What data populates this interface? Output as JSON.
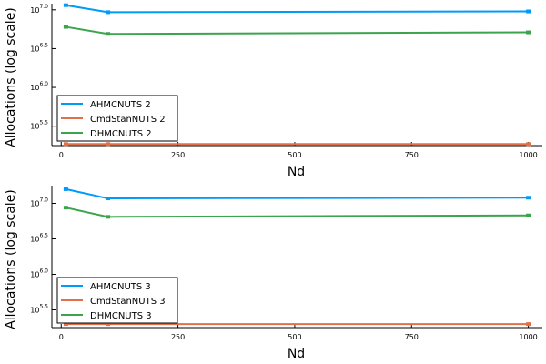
{
  "chart_data": [
    {
      "type": "line",
      "title": "",
      "xlabel": "Nd",
      "ylabel": "Allocations (log scale)",
      "x": [
        10,
        100,
        1000
      ],
      "xlim": [
        -20,
        1030
      ],
      "xticks": [
        "0",
        "250",
        "500",
        "750",
        "1000"
      ],
      "xtick_values": [
        0,
        250,
        500,
        750,
        1000
      ],
      "yscale": "log10",
      "ylim": [
        5.25,
        7.08
      ],
      "ytick_values": [
        5.5,
        6.0,
        6.5,
        7.0
      ],
      "yticks": [
        {
          "base": "10",
          "exp": "5.5"
        },
        {
          "base": "10",
          "exp": "6.0"
        },
        {
          "base": "10",
          "exp": "6.5"
        },
        {
          "base": "10",
          "exp": "7.0"
        }
      ],
      "grid": false,
      "legend_position": "bottom-left",
      "series": [
        {
          "name": "AHMCNUTS 2",
          "color": "#009AFA",
          "log10_values": [
            7.06,
            6.97,
            6.98
          ]
        },
        {
          "name": "CmdStanNUTS 2",
          "color": "#E26F46",
          "log10_values": [
            5.27,
            5.27,
            5.27
          ]
        },
        {
          "name": "DHMCNUTS 2",
          "color": "#3DA44E",
          "log10_values": [
            6.78,
            6.69,
            6.71
          ]
        }
      ]
    },
    {
      "type": "line",
      "title": "",
      "xlabel": "Nd",
      "ylabel": "Allocations (log scale)",
      "x": [
        10,
        100,
        1000
      ],
      "xlim": [
        -20,
        1030
      ],
      "xticks": [
        "0",
        "250",
        "500",
        "750",
        "1000"
      ],
      "xtick_values": [
        0,
        250,
        500,
        750,
        1000
      ],
      "yscale": "log10",
      "ylim": [
        5.25,
        7.25
      ],
      "ytick_values": [
        5.5,
        6.0,
        6.5,
        7.0
      ],
      "yticks": [
        {
          "base": "10",
          "exp": "5.5"
        },
        {
          "base": "10",
          "exp": "6.0"
        },
        {
          "base": "10",
          "exp": "6.5"
        },
        {
          "base": "10",
          "exp": "7.0"
        }
      ],
      "grid": false,
      "legend_position": "bottom-left",
      "series": [
        {
          "name": "AHMCNUTS 3",
          "color": "#009AFA",
          "log10_values": [
            7.2,
            7.07,
            7.08
          ]
        },
        {
          "name": "CmdStanNUTS 3",
          "color": "#E26F46",
          "log10_values": [
            5.3,
            5.3,
            5.3
          ]
        },
        {
          "name": "DHMCNUTS 3",
          "color": "#3DA44E",
          "log10_values": [
            6.94,
            6.81,
            6.83
          ]
        }
      ]
    }
  ]
}
